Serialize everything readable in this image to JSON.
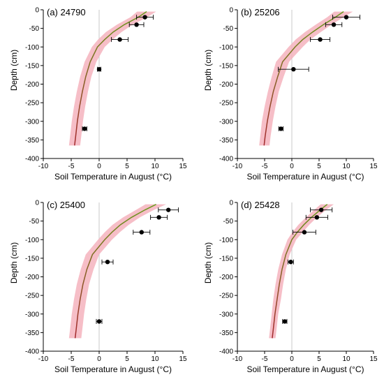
{
  "colors": {
    "band": "#f5b3bd",
    "line_upper": "#6a9a1e",
    "line_lower": "#a4282d",
    "points": "#000000",
    "zero_line": "#c8c8c8"
  },
  "chart_data": [
    {
      "type": "line",
      "title": "(a) 24790",
      "xlabel": "Soil Temperature in August (°C)",
      "ylabel": "Depth (cm)",
      "xlim": [
        -10,
        15
      ],
      "ylim": [
        -400,
        0
      ],
      "x_ticks": [
        -10,
        -5,
        0,
        5,
        10,
        15
      ],
      "y_ticks": [
        0,
        -50,
        -100,
        -150,
        -200,
        -250,
        -300,
        -350,
        -400
      ],
      "model": {
        "depth": [
          -5,
          -20,
          -40,
          -60,
          -80,
          -100,
          -140,
          -180,
          -220,
          -260,
          -300,
          -340,
          -365
        ],
        "temp": [
          8.5,
          7.0,
          4.5,
          2.5,
          1.0,
          -0.3,
          -1.6,
          -2.4,
          -3.0,
          -3.5,
          -3.9,
          -4.2,
          -4.4
        ],
        "lower": [
          6.8,
          5.6,
          3.2,
          1.2,
          -0.2,
          -1.3,
          -2.6,
          -3.4,
          -4.0,
          -4.5,
          -4.9,
          -5.2,
          -5.4
        ],
        "upper": [
          10.2,
          8.6,
          6.0,
          4.0,
          2.4,
          1.0,
          -0.5,
          -1.4,
          -2.0,
          -2.5,
          -2.9,
          -3.2,
          -3.4
        ]
      },
      "observations": [
        {
          "depth": -20,
          "temp": 8.2,
          "err": 1.5
        },
        {
          "depth": -40,
          "temp": 6.7,
          "err": 1.3
        },
        {
          "depth": -80,
          "temp": 3.7,
          "err": 1.5
        },
        {
          "depth": -160,
          "temp": 0.0,
          "err": 0.3
        },
        {
          "depth": -320,
          "temp": -2.6,
          "err": 0.4
        }
      ]
    },
    {
      "type": "line",
      "title": "(b) 25206",
      "xlabel": "Soil Temperature in August (°C)",
      "ylabel": "Depth (cm)",
      "xlim": [
        -10,
        15
      ],
      "ylim": [
        -400,
        0
      ],
      "x_ticks": [
        -10,
        -5,
        0,
        5,
        10,
        15
      ],
      "y_ticks": [
        0,
        -50,
        -100,
        -150,
        -200,
        -250,
        -300,
        -350,
        -400
      ],
      "model": {
        "depth": [
          -5,
          -20,
          -40,
          -60,
          -80,
          -100,
          -140,
          -180,
          -220,
          -260,
          -300,
          -340,
          -365
        ],
        "temp": [
          9.5,
          8.0,
          5.8,
          3.8,
          2.0,
          0.6,
          -1.7,
          -2.6,
          -3.4,
          -4.0,
          -4.5,
          -4.9,
          -5.1
        ],
        "lower": [
          7.8,
          6.5,
          4.4,
          2.4,
          0.7,
          -0.6,
          -2.9,
          -3.7,
          -4.4,
          -5.0,
          -5.5,
          -5.8,
          -6.0
        ],
        "upper": [
          11.2,
          9.5,
          7.3,
          5.3,
          3.4,
          2.0,
          -0.5,
          -1.5,
          -2.4,
          -3.0,
          -3.5,
          -3.9,
          -4.1
        ]
      },
      "observations": [
        {
          "depth": -20,
          "temp": 10.0,
          "err": 2.5
        },
        {
          "depth": -40,
          "temp": 7.7,
          "err": 1.5
        },
        {
          "depth": -80,
          "temp": 5.2,
          "err": 1.8
        },
        {
          "depth": -160,
          "temp": 0.3,
          "err": 2.8
        },
        {
          "depth": -320,
          "temp": -2.0,
          "err": 0.4
        }
      ]
    },
    {
      "type": "line",
      "title": "(c) 25400",
      "xlabel": "Soil Temperature in August (°C)",
      "ylabel": "Depth (cm)",
      "xlim": [
        -10,
        15
      ],
      "ylim": [
        -400,
        0
      ],
      "x_ticks": [
        -10,
        -5,
        0,
        5,
        10,
        15
      ],
      "y_ticks": [
        0,
        -50,
        -100,
        -150,
        -200,
        -250,
        -300,
        -350,
        -400
      ],
      "model": {
        "depth": [
          -5,
          -20,
          -40,
          -60,
          -80,
          -100,
          -140,
          -180,
          -220,
          -260,
          -300,
          -340,
          -365
        ],
        "temp": [
          10.2,
          8.2,
          5.8,
          3.8,
          2.3,
          1.0,
          -1.2,
          -2.2,
          -2.9,
          -3.4,
          -3.8,
          -4.1,
          -4.3
        ],
        "lower": [
          8.3,
          6.6,
          4.3,
          2.4,
          1.0,
          -0.2,
          -2.4,
          -3.3,
          -4.0,
          -4.5,
          -4.9,
          -5.2,
          -5.4
        ],
        "upper": [
          12.0,
          9.8,
          7.3,
          5.3,
          3.7,
          2.3,
          0.0,
          -1.0,
          -1.8,
          -2.3,
          -2.7,
          -3.0,
          -3.2
        ]
      },
      "observations": [
        {
          "depth": -20,
          "temp": 12.4,
          "err": 1.8
        },
        {
          "depth": -40,
          "temp": 10.7,
          "err": 1.5
        },
        {
          "depth": -80,
          "temp": 7.6,
          "err": 1.5
        },
        {
          "depth": -160,
          "temp": 1.5,
          "err": 1.0
        },
        {
          "depth": -320,
          "temp": 0.0,
          "err": 0.5
        }
      ]
    },
    {
      "type": "line",
      "title": "(d) 25428",
      "xlabel": "Soil Temperature in August (°C)",
      "ylabel": "Depth (cm)",
      "xlim": [
        -10,
        15
      ],
      "ylim": [
        -400,
        0
      ],
      "x_ticks": [
        -10,
        -5,
        0,
        5,
        10,
        15
      ],
      "y_ticks": [
        0,
        -50,
        -100,
        -150,
        -200,
        -250,
        -300,
        -350,
        -400
      ],
      "model": {
        "depth": [
          -5,
          -20,
          -40,
          -60,
          -80,
          -100,
          -140,
          -180,
          -220,
          -260,
          -300,
          -340,
          -365
        ],
        "temp": [
          6.5,
          5.2,
          3.6,
          2.2,
          1.0,
          0.0,
          -1.1,
          -1.8,
          -2.3,
          -2.7,
          -3.1,
          -3.4,
          -3.6
        ],
        "lower": [
          5.3,
          4.1,
          2.6,
          1.2,
          0.1,
          -0.8,
          -1.8,
          -2.5,
          -3.0,
          -3.4,
          -3.7,
          -4.0,
          -4.2
        ],
        "upper": [
          7.7,
          6.3,
          4.6,
          3.2,
          2.0,
          0.8,
          -0.4,
          -1.1,
          -1.6,
          -2.0,
          -2.5,
          -2.8,
          -3.0
        ]
      },
      "observations": [
        {
          "depth": -20,
          "temp": 5.4,
          "err": 2.0
        },
        {
          "depth": -40,
          "temp": 4.6,
          "err": 2.0
        },
        {
          "depth": -80,
          "temp": 2.3,
          "err": 2.1
        },
        {
          "depth": -160,
          "temp": -0.2,
          "err": 0.5
        },
        {
          "depth": -320,
          "temp": -1.3,
          "err": 0.4
        }
      ]
    }
  ]
}
